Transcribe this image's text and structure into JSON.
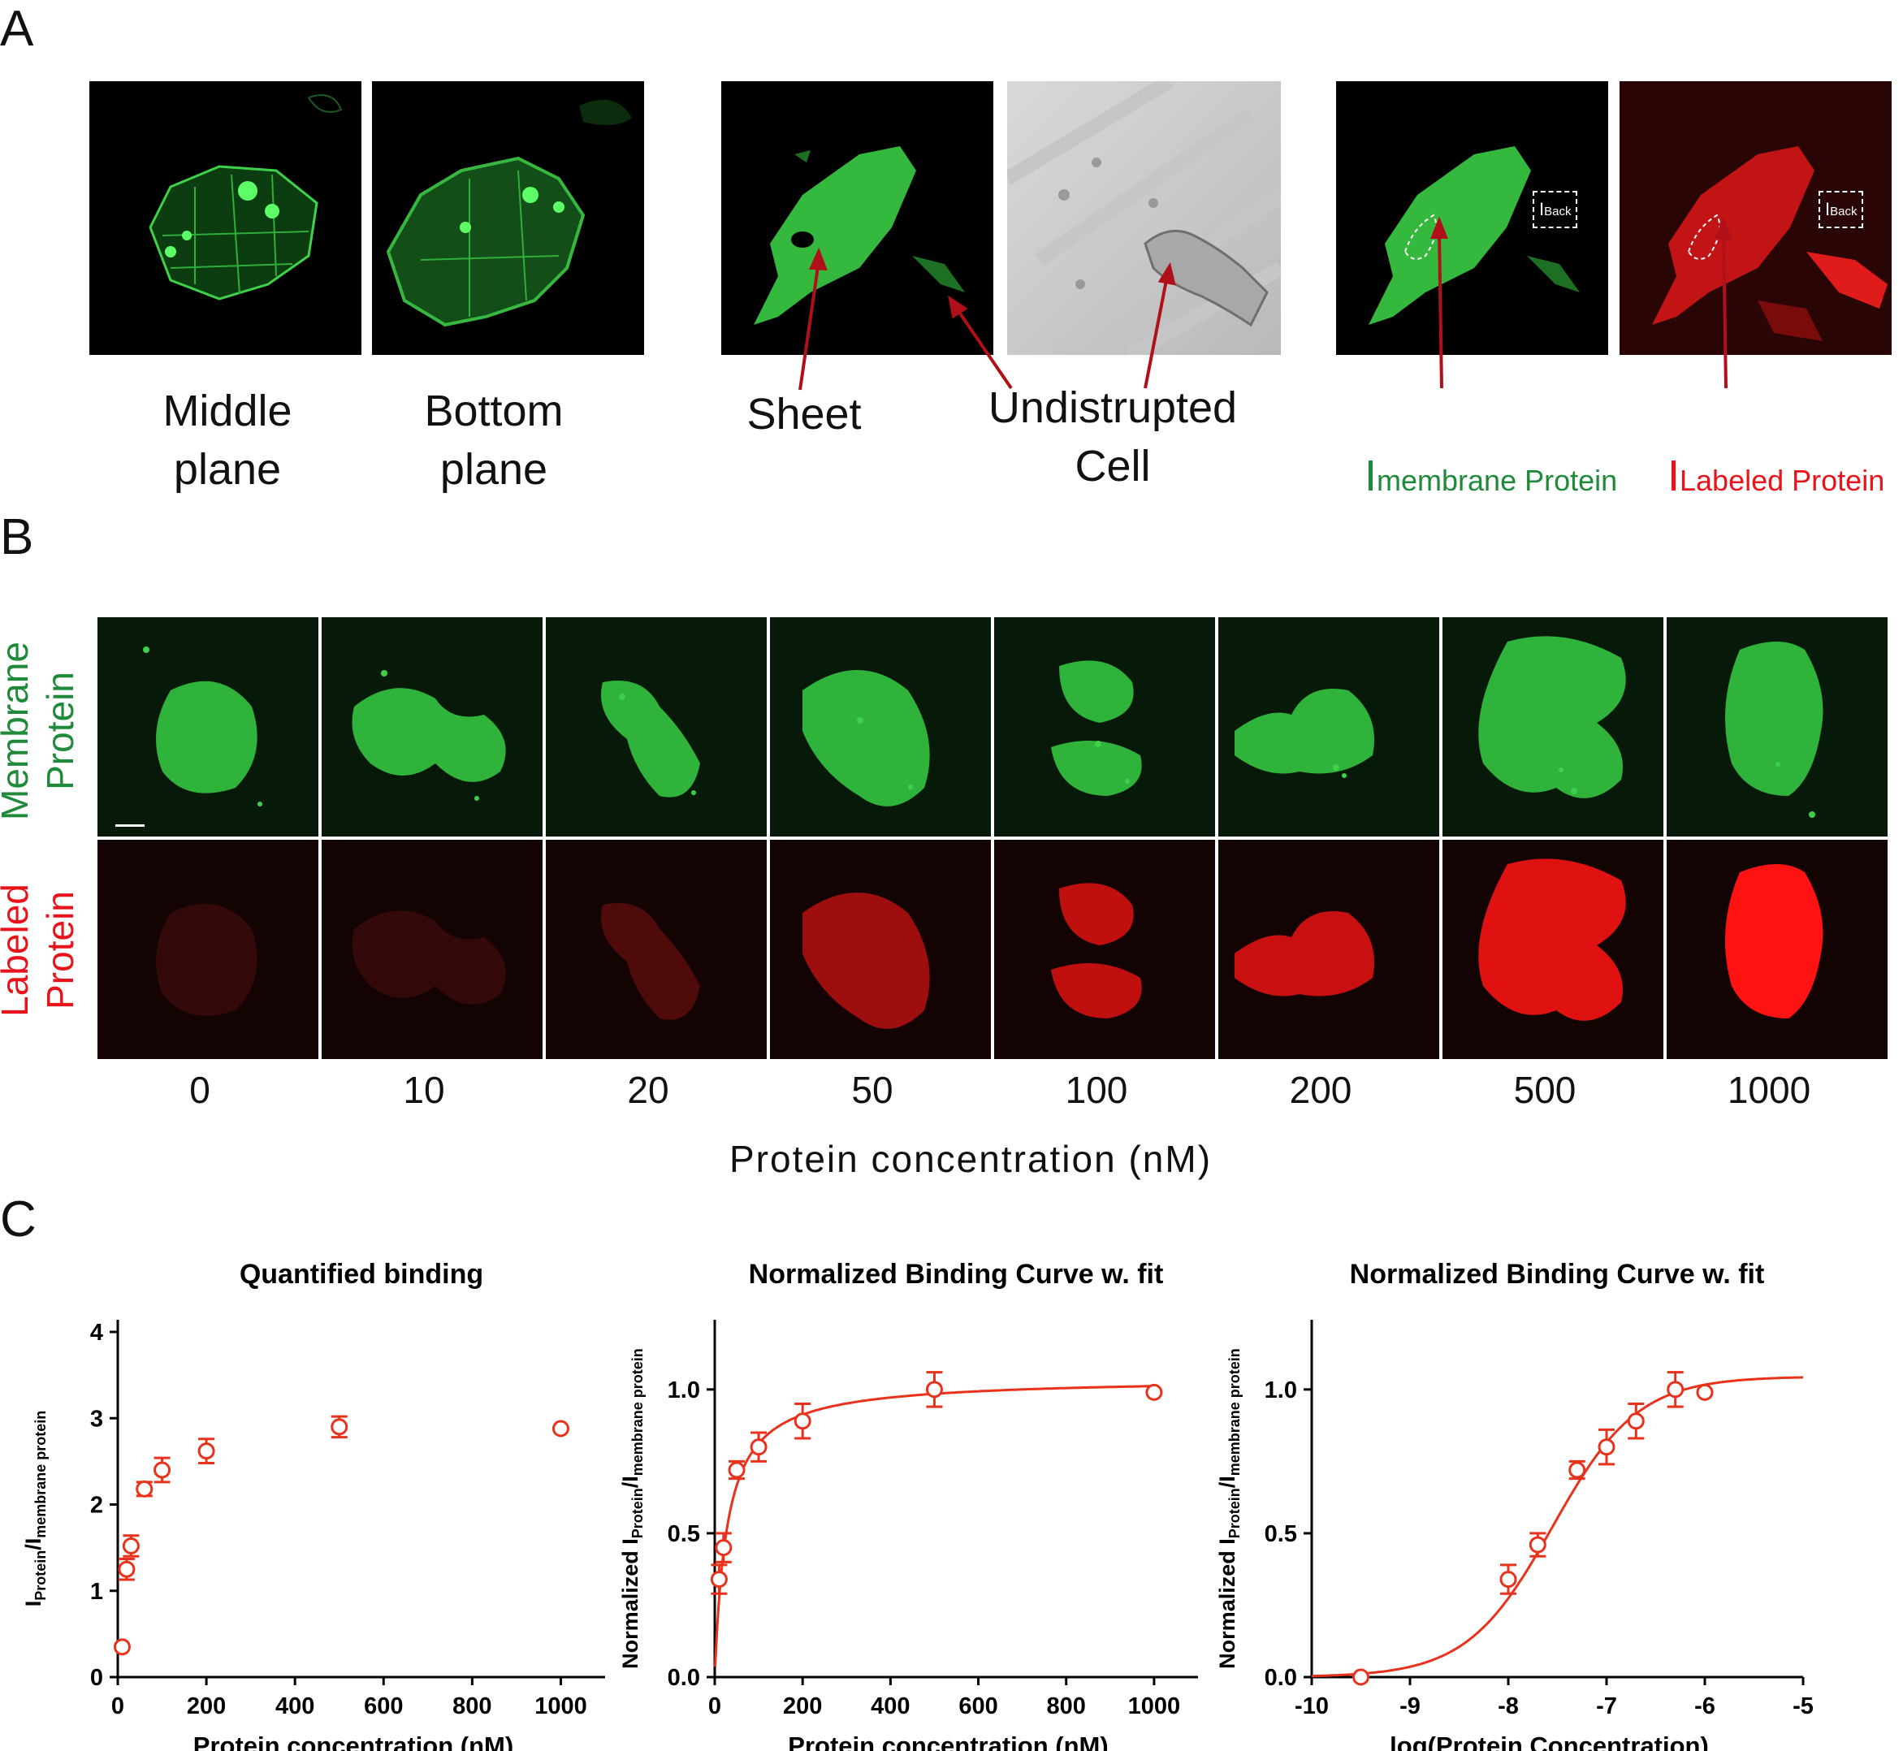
{
  "panels": {
    "a": "A",
    "b": "B",
    "c": "C"
  },
  "panelA": {
    "labels": {
      "middle": "Middle\nplane",
      "bottom": "Bottom\nplane",
      "sheet": "Sheet",
      "undisrupted": "Undistrupted\nCell",
      "imem_main": "I",
      "imem_sub": "membrane Protein",
      "ilab_main": "I",
      "ilab_sub": "Labeled Protein",
      "back_main": "I",
      "back_sub": "Back"
    }
  },
  "panelB": {
    "row_membrane": "Membrane\nProtein",
    "row_labeled": "Labeled\nProtein",
    "concentrations": [
      "0",
      "10",
      "20",
      "50",
      "100",
      "200",
      "500",
      "1000"
    ],
    "red_intensity": [
      0.05,
      0.05,
      0.18,
      0.55,
      0.7,
      0.75,
      0.85,
      1.0
    ],
    "axis_title": "Protein concentration (nM)"
  },
  "chart_data": [
    {
      "type": "scatter",
      "title": "Quantified binding",
      "xlabel": "Protein concentration (nM)",
      "ylabel_main": "I",
      "ylabel_sub1": "Protein",
      "ylabel_mid": "/I",
      "ylabel_sub2": "membrane protein",
      "xlim": [
        0,
        1100
      ],
      "ylim": [
        0,
        4
      ],
      "xticks": [
        0,
        200,
        400,
        600,
        800,
        1000
      ],
      "yticks": [
        0,
        1,
        2,
        3,
        4
      ],
      "x": [
        10,
        20,
        30,
        60,
        100,
        200,
        500,
        1000
      ],
      "y": [
        0.35,
        1.25,
        1.52,
        2.18,
        2.4,
        2.62,
        2.9,
        2.88
      ],
      "err": [
        0.0,
        0.12,
        0.12,
        0.08,
        0.14,
        0.14,
        0.12,
        0.0
      ],
      "color": "#e8321c"
    },
    {
      "type": "scatter",
      "title": "Normalized Binding Curve w. fit",
      "xlabel": "Protein concentration (nM)",
      "ylabel_main": "Normalized I",
      "ylabel_sub1": "Protein",
      "ylabel_mid": "/I",
      "ylabel_sub2": "membrane protein",
      "xlim": [
        0,
        1100
      ],
      "ylim": [
        0,
        1.2
      ],
      "xticks": [
        0,
        200,
        400,
        600,
        800,
        1000
      ],
      "yticks": [
        0.0,
        0.5,
        1.0
      ],
      "yticklabels": [
        "0.0",
        "0.5",
        "1.0"
      ],
      "x": [
        10,
        20,
        50,
        100,
        200,
        500,
        1000
      ],
      "y": [
        0.34,
        0.45,
        0.72,
        0.8,
        0.89,
        1.0,
        0.99
      ],
      "err": [
        0.05,
        0.05,
        0.03,
        0.05,
        0.06,
        0.06,
        0.0
      ],
      "fit": {
        "bmax": 1.04,
        "kd": 28
      },
      "color": "#e8321c"
    },
    {
      "type": "scatter",
      "title": "Normalized Binding Curve w. fit",
      "xlabel": "log(Protein Concentration)",
      "ylabel_main": "Normalized I",
      "ylabel_sub1": "Protein",
      "ylabel_mid": "/I",
      "ylabel_sub2": "membrane protein",
      "xlim": [
        -10,
        -5
      ],
      "ylim": [
        0,
        1.2
      ],
      "xticks": [
        -10,
        -9,
        -8,
        -7,
        -6,
        -5
      ],
      "yticks": [
        0.0,
        0.5,
        1.0
      ],
      "yticklabels": [
        "0.0",
        "0.5",
        "1.0"
      ],
      "x": [
        -9.5,
        -8.0,
        -7.7,
        -7.3,
        -7.0,
        -6.7,
        -6.3,
        -6.0
      ],
      "y": [
        0.0,
        0.34,
        0.46,
        0.72,
        0.8,
        0.89,
        1.0,
        0.99
      ],
      "err": [
        0.0,
        0.05,
        0.04,
        0.03,
        0.06,
        0.06,
        0.06,
        0.0
      ],
      "fit": {
        "top": 1.045,
        "logec50": -7.55,
        "hill": 1.0
      },
      "color": "#e8321c"
    }
  ]
}
